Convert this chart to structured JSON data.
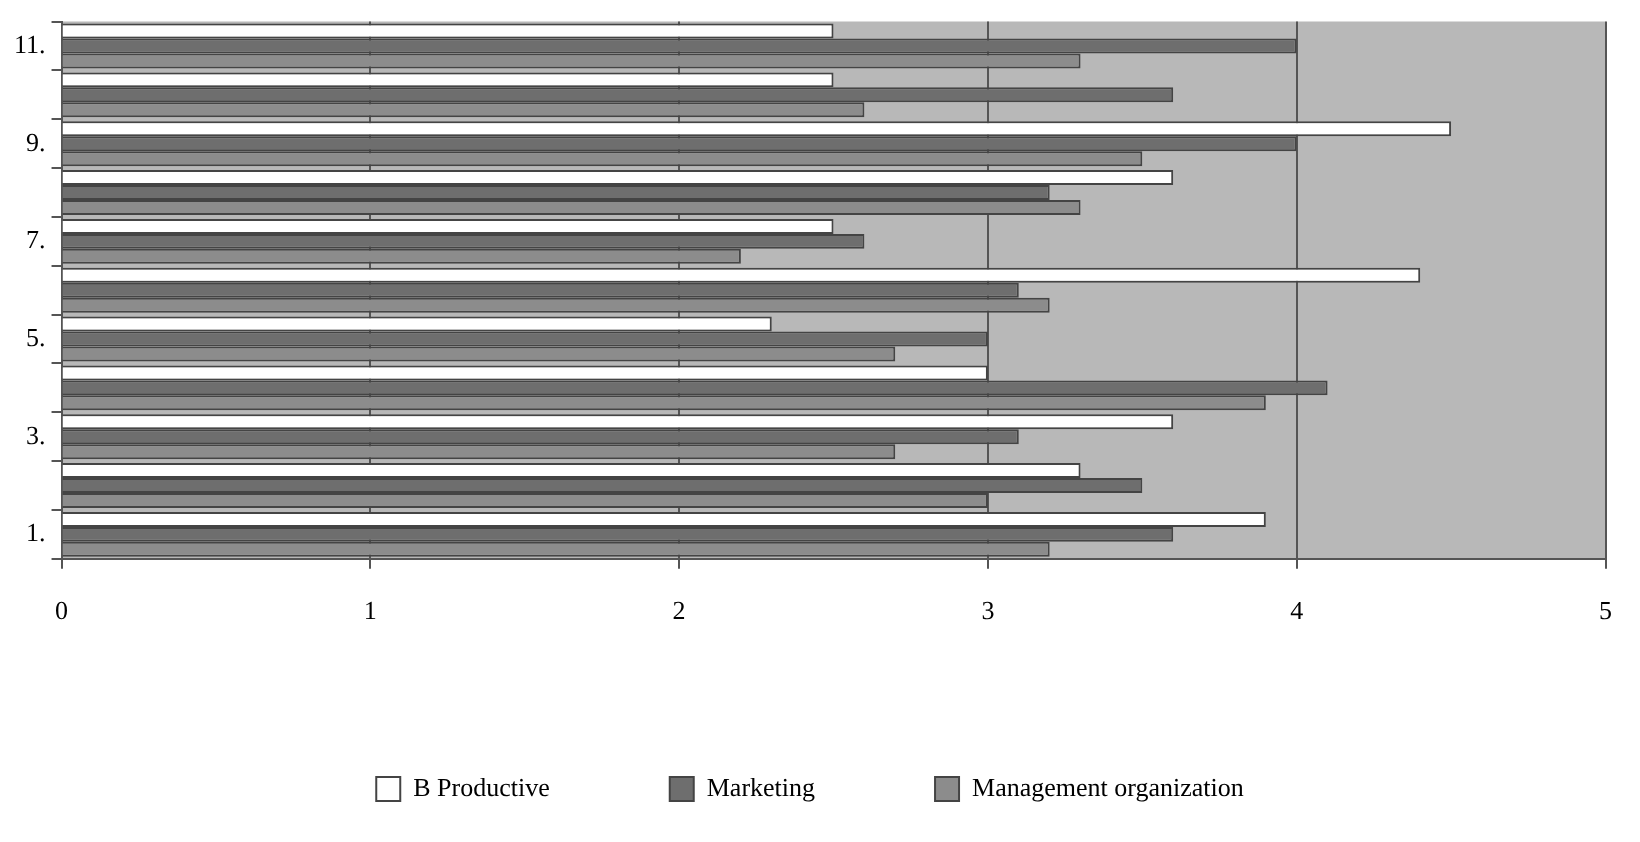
{
  "chart_data": {
    "type": "bar",
    "orientation": "horizontal",
    "categories": [
      "11.",
      null,
      "9.",
      null,
      "7.",
      null,
      "5.",
      null,
      "3.",
      null,
      "1."
    ],
    "series": [
      {
        "name": "B Productive",
        "color": "#ffffff",
        "values": [
          2.5,
          2.5,
          4.5,
          3.6,
          2.5,
          4.4,
          2.3,
          3.0,
          3.6,
          3.3,
          3.9
        ]
      },
      {
        "name": "Marketing",
        "color": "#6e6e6e",
        "values": [
          4.0,
          3.6,
          4.0,
          3.2,
          2.6,
          3.1,
          3.0,
          4.1,
          3.1,
          3.5,
          3.6
        ]
      },
      {
        "name": "Management organization",
        "color": "#8c8c8c",
        "values": [
          3.3,
          2.6,
          3.5,
          3.3,
          2.2,
          3.2,
          2.7,
          3.9,
          2.7,
          3.0,
          3.2
        ]
      }
    ],
    "xlim": [
      0,
      5
    ],
    "xticks": [
      0,
      1,
      2,
      3,
      4,
      5
    ],
    "grid": "x",
    "legend": "bottom"
  }
}
